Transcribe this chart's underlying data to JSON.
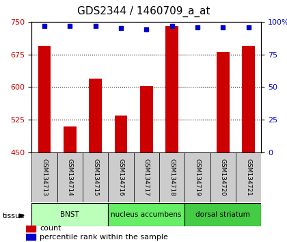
{
  "title": "GDS2344 / 1460709_a_at",
  "samples": [
    "GSM134713",
    "GSM134714",
    "GSM134715",
    "GSM134716",
    "GSM134717",
    "GSM134718",
    "GSM134719",
    "GSM134720",
    "GSM134721"
  ],
  "counts_values": [
    695,
    510,
    620,
    535,
    603,
    740,
    450,
    680,
    695
  ],
  "percentile_values": [
    97,
    97,
    97,
    95,
    94,
    97,
    96,
    96,
    96
  ],
  "ylim_left": [
    450,
    750
  ],
  "ylim_right": [
    0,
    100
  ],
  "yticks_left": [
    450,
    525,
    600,
    675,
    750
  ],
  "yticks_right": [
    0,
    25,
    50,
    75,
    100
  ],
  "bar_color": "#cc0000",
  "dot_color": "#0000cc",
  "bar_width": 0.5,
  "groups": [
    {
      "label": "BNST",
      "start": 0,
      "end": 3,
      "color": "#bbffbb"
    },
    {
      "label": "nucleus accumbens",
      "start": 3,
      "end": 6,
      "color": "#66ee66"
    },
    {
      "label": "dorsal striatum",
      "start": 6,
      "end": 9,
      "color": "#44cc44"
    }
  ],
  "tissue_label": "tissue",
  "legend_count_label": "count",
  "legend_pct_label": "percentile rank within the sample",
  "sample_box_color": "#cccccc"
}
